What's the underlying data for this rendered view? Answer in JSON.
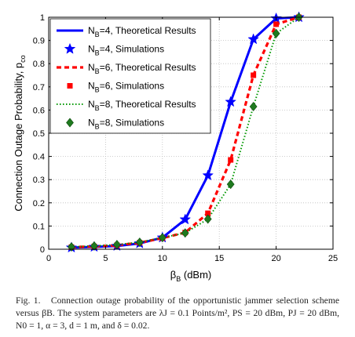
{
  "chart_data": {
    "type": "line",
    "xlabel_main": "β",
    "xlabel_sub": "B",
    "xlabel_unit": " (dBm)",
    "ylabel_main": "Connection Outage Probability, p",
    "ylabel_sub": "co",
    "xlim": [
      0,
      25
    ],
    "ylim": [
      0,
      1
    ],
    "xticks": [
      "0",
      "5",
      "10",
      "15",
      "20",
      "25"
    ],
    "yticks": [
      "0",
      "0.1",
      "0.2",
      "0.3",
      "0.4",
      "0.5",
      "0.6",
      "0.7",
      "0.8",
      "0.9",
      "1"
    ],
    "grid": true,
    "legend_position": "top-left",
    "x": [
      2,
      4,
      6,
      8,
      10,
      12,
      14,
      16,
      18,
      20,
      22
    ],
    "series": [
      {
        "legend_main": "N",
        "legend_sub": "B",
        "legend_rest": "=4, Theoretical Results",
        "kind": "theory",
        "color": "#0000ff",
        "line": "solid",
        "values": [
          0.007,
          0.01,
          0.014,
          0.025,
          0.05,
          0.128,
          0.318,
          0.635,
          0.905,
          0.995,
          1.0
        ]
      },
      {
        "legend_main": "N",
        "legend_sub": "B",
        "legend_rest": "=4, Simulations",
        "kind": "sim",
        "color": "#0000ff",
        "marker": "star",
        "values": [
          0.007,
          0.01,
          0.014,
          0.025,
          0.05,
          0.128,
          0.318,
          0.635,
          0.905,
          0.995,
          1.0
        ]
      },
      {
        "legend_main": "N",
        "legend_sub": "B",
        "legend_rest": "=6, Theoretical Results",
        "kind": "theory",
        "color": "#ff0000",
        "line": "dashed",
        "values": [
          0.009,
          0.012,
          0.017,
          0.028,
          0.048,
          0.072,
          0.155,
          0.385,
          0.75,
          0.97,
          1.0
        ]
      },
      {
        "legend_main": "N",
        "legend_sub": "B",
        "legend_rest": "=6, Simulations",
        "kind": "sim",
        "color": "#ff0000",
        "marker": "square",
        "values": [
          0.009,
          0.012,
          0.017,
          0.028,
          0.048,
          0.072,
          0.155,
          0.385,
          0.75,
          0.97,
          1.0
        ]
      },
      {
        "legend_main": "N",
        "legend_sub": "B",
        "legend_rest": "=8, Theoretical Results",
        "kind": "theory",
        "color": "#009900",
        "line": "dotted",
        "values": [
          0.01,
          0.014,
          0.02,
          0.03,
          0.05,
          0.07,
          0.13,
          0.28,
          0.615,
          0.93,
          1.0
        ]
      },
      {
        "legend_main": "N",
        "legend_sub": "B",
        "legend_rest": "=8, Simulations",
        "kind": "sim",
        "color": "#1f7a1f",
        "marker": "diamond",
        "values": [
          0.01,
          0.014,
          0.02,
          0.03,
          0.05,
          0.07,
          0.13,
          0.28,
          0.615,
          0.93,
          1.0
        ]
      }
    ]
  },
  "caption": {
    "label": "Fig. 1.",
    "text": "Connection outage probability of the opportunistic jammer selection scheme versus βB. The system parameters are λJ = 0.1 Points/m², PS = 20 dBm, PJ = 20 dBm, N0 = 1, α = 3, d = 1 m, and δ = 0.02."
  }
}
